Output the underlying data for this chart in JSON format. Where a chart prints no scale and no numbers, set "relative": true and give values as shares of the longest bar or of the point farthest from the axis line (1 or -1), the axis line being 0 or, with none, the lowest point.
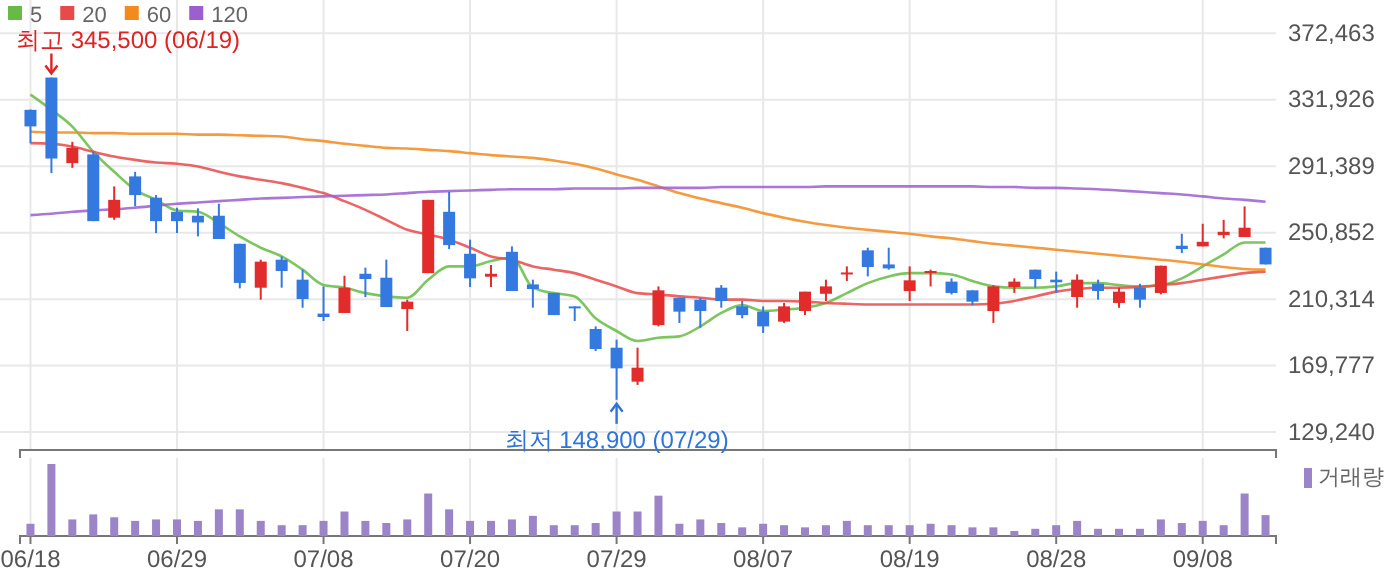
{
  "chart_data": [
    {
      "type": "candlestick",
      "categories": [
        "06/18",
        null,
        null,
        null,
        null,
        null,
        null,
        "06/29",
        null,
        null,
        null,
        null,
        null,
        null,
        "07/08",
        null,
        null,
        null,
        null,
        null,
        null,
        "07/20",
        null,
        null,
        null,
        null,
        null,
        null,
        "07/29",
        null,
        null,
        null,
        null,
        null,
        null,
        "08/07",
        null,
        null,
        null,
        null,
        null,
        null,
        "08/19",
        null,
        null,
        null,
        null,
        null,
        null,
        "08/28",
        null,
        null,
        null,
        null,
        null,
        null,
        "09/08",
        null,
        null,
        null
      ],
      "ohlc": [
        [
          325800,
          326000,
          305400,
          315700
        ],
        [
          345500,
          345500,
          287200,
          296100
        ],
        [
          293300,
          306300,
          290400,
          302600
        ],
        [
          298600,
          300200,
          257900,
          257900
        ],
        [
          260000,
          279100,
          258700,
          270900
        ],
        [
          285200,
          288000,
          266900,
          273800
        ],
        [
          272200,
          273800,
          250600,
          257900
        ],
        [
          263600,
          266100,
          250600,
          257900
        ],
        [
          261200,
          265700,
          248600,
          257100
        ],
        [
          261200,
          268500,
          247000,
          247000
        ],
        [
          244100,
          244100,
          216900,
          220200
        ],
        [
          217300,
          234400,
          210000,
          233200
        ],
        [
          234400,
          236400,
          217300,
          227500
        ],
        [
          222200,
          228300,
          205100,
          210400
        ],
        [
          201500,
          218100,
          197000,
          199400
        ],
        [
          201900,
          224600,
          201900,
          217300
        ],
        [
          225800,
          229500,
          211600,
          222600
        ],
        [
          223400,
          234400,
          205500,
          205500
        ],
        [
          204300,
          210000,
          190900,
          208800
        ],
        [
          226200,
          270900,
          226200,
          270900
        ],
        [
          263600,
          275800,
          240900,
          243300
        ],
        [
          238000,
          246600,
          217700,
          223000
        ],
        [
          224000,
          231100,
          217700,
          225800
        ],
        [
          239200,
          242500,
          215300,
          215300
        ],
        [
          219300,
          222200,
          205100,
          216500
        ],
        [
          214100,
          214100,
          200600,
          200600
        ],
        [
          205900,
          205900,
          197000,
          205100
        ],
        [
          192100,
          193700,
          178700,
          179900
        ],
        [
          180700,
          185600,
          148900,
          168100
        ],
        [
          160000,
          180700,
          158000,
          168500
        ],
        [
          194500,
          218100,
          193700,
          215700
        ],
        [
          211200,
          211200,
          195800,
          202700
        ],
        [
          210000,
          211200,
          192900,
          203100
        ],
        [
          217300,
          218900,
          205100,
          209200
        ],
        [
          205900,
          209200,
          198600,
          200600
        ],
        [
          202700,
          205900,
          189700,
          193700
        ],
        [
          196600,
          208000,
          195800,
          205900
        ],
        [
          203100,
          214900,
          200600,
          214900
        ],
        [
          213600,
          222200,
          209200,
          218100
        ],
        [
          225400,
          230300,
          221400,
          226600
        ],
        [
          240100,
          241700,
          224200,
          229900
        ],
        [
          231500,
          241700,
          228300,
          229100
        ],
        [
          215300,
          230300,
          209200,
          221800
        ],
        [
          226600,
          228300,
          218100,
          227500
        ],
        [
          221000,
          223000,
          213200,
          214100
        ],
        [
          215700,
          215700,
          206700,
          208800
        ],
        [
          203100,
          218900,
          195800,
          218100
        ],
        [
          217700,
          223000,
          214100,
          221000
        ],
        [
          228300,
          228300,
          217300,
          222600
        ],
        [
          222200,
          227100,
          214100,
          220600
        ],
        [
          211600,
          225400,
          205100,
          222200
        ],
        [
          219700,
          222200,
          210000,
          215300
        ],
        [
          208000,
          217300,
          205100,
          214900
        ],
        [
          217300,
          219700,
          205100,
          210000
        ],
        [
          214100,
          230700,
          213200,
          230700
        ],
        [
          242900,
          250200,
          238400,
          240900
        ],
        [
          242500,
          256300,
          242500,
          245300
        ],
        [
          249400,
          258700,
          247400,
          251400
        ],
        [
          248200,
          266900,
          248200,
          253900
        ],
        [
          241700,
          241700,
          231500,
          231500
        ]
      ],
      "series": [
        {
          "name": "5",
          "type": "line",
          "color": "#66bb44",
          "values": [
            335100,
            325800,
            315600,
            300200,
            288000,
            277000,
            270900,
            264400,
            263600,
            256700,
            248600,
            241700,
            236400,
            228300,
            218900,
            217300,
            214000,
            212000,
            211200,
            222200,
            230300,
            230300,
            233600,
            235600,
            217300,
            214000,
            212000,
            198600,
            190900,
            184800,
            186800,
            187600,
            193700,
            201900,
            206700,
            203100,
            203900,
            205100,
            208000,
            214000,
            220100,
            224200,
            226200,
            226200,
            225400,
            221400,
            218100,
            217300,
            217300,
            218100,
            220100,
            220100,
            218900,
            218100,
            218900,
            223000,
            230300,
            237600,
            244900,
            244900
          ]
        },
        {
          "name": "20",
          "type": "line",
          "color": "#e84a4a",
          "values": [
            305500,
            305100,
            303400,
            300200,
            297300,
            295300,
            293700,
            292900,
            291200,
            288000,
            285200,
            283100,
            281100,
            278200,
            275000,
            270100,
            264800,
            258700,
            252600,
            249800,
            246600,
            241700,
            236400,
            234400,
            230300,
            228300,
            226200,
            222200,
            218100,
            214000,
            213200,
            212000,
            211200,
            210000,
            210000,
            209200,
            209200,
            208800,
            208000,
            207500,
            207100,
            207100,
            207100,
            207100,
            207100,
            207100,
            207500,
            209200,
            212000,
            214900,
            216500,
            217300,
            217300,
            217700,
            218900,
            220100,
            222200,
            224200,
            226200,
            227100
          ]
        },
        {
          "name": "60",
          "type": "line",
          "color": "#f28a1e",
          "values": [
            312400,
            312000,
            312000,
            311600,
            311600,
            311200,
            311200,
            311200,
            310700,
            310700,
            310300,
            309900,
            309500,
            307900,
            306700,
            305100,
            303800,
            302600,
            302200,
            301400,
            300600,
            299400,
            298200,
            297300,
            296500,
            294900,
            292900,
            290000,
            286400,
            283100,
            279100,
            275000,
            271700,
            268900,
            266100,
            262800,
            260000,
            257500,
            255500,
            253900,
            252600,
            251400,
            250200,
            248600,
            247400,
            245700,
            244100,
            242900,
            241700,
            240500,
            239200,
            238000,
            236800,
            235600,
            234400,
            233100,
            231500,
            229900,
            228700,
            228300
          ]
        },
        {
          "name": "120",
          "type": "line",
          "color": "#9b5fd0",
          "values": [
            261600,
            262400,
            263600,
            264400,
            265200,
            266100,
            267300,
            268500,
            269300,
            270100,
            270900,
            271700,
            272100,
            272600,
            273000,
            273400,
            273800,
            274200,
            275000,
            275800,
            276200,
            276600,
            277000,
            277400,
            277400,
            277400,
            277800,
            277800,
            277800,
            278200,
            278200,
            278200,
            278200,
            278700,
            278700,
            278700,
            278700,
            278700,
            279100,
            279100,
            279100,
            279100,
            279100,
            279100,
            279100,
            279100,
            278700,
            278700,
            278200,
            278200,
            277800,
            277400,
            276600,
            275800,
            275000,
            274200,
            273000,
            271700,
            270900,
            269700
          ]
        }
      ],
      "ylim": [
        118300,
        392800
      ],
      "yticks": [
        {
          "value": 129240,
          "label": "129,240"
        },
        {
          "value": 169777,
          "label": "169,777"
        },
        {
          "value": 210314,
          "label": "210,314"
        },
        {
          "value": 250852,
          "label": "250,852"
        },
        {
          "value": 291389,
          "label": "291,389"
        },
        {
          "value": 331926,
          "label": "331,926"
        },
        {
          "value": 372463,
          "label": "372,463"
        }
      ],
      "grid": true,
      "legend": "top left",
      "tick_labels": "y",
      "annotations": [
        "최고 345,500 (06/19)",
        {
          "text": "최저 148,900 (07/29)",
          "x": "07/29",
          "y": 148900
        }
      ]
    },
    {
      "type": "bar",
      "relative": true,
      "categories": [
        "06/18",
        null,
        null,
        null,
        null,
        null,
        null,
        "06/29",
        null,
        null,
        null,
        null,
        null,
        null,
        "07/08",
        null,
        null,
        null,
        null,
        null,
        null,
        "07/20",
        null,
        null,
        null,
        null,
        null,
        null,
        "07/29",
        null,
        null,
        null,
        null,
        null,
        null,
        "08/07",
        null,
        null,
        null,
        null,
        null,
        null,
        "08/19",
        null,
        null,
        null,
        null,
        null,
        null,
        "08/28",
        null,
        null,
        null,
        null,
        null,
        null,
        "09/08",
        null,
        null,
        null
      ],
      "series": [
        {
          "name": "거래량",
          "color": "#9c84c8",
          "values": [
            0.17,
            1,
            0.23,
            0.3,
            0.26,
            0.21,
            0.23,
            0.23,
            0.21,
            0.37,
            0.37,
            0.21,
            0.15,
            0.15,
            0.21,
            0.34,
            0.21,
            0.18,
            0.23,
            0.59,
            0.37,
            0.21,
            0.21,
            0.23,
            0.28,
            0.15,
            0.15,
            0.18,
            0.34,
            0.34,
            0.56,
            0.17,
            0.23,
            0.18,
            0.12,
            0.17,
            0.15,
            0.12,
            0.15,
            0.21,
            0.15,
            0.15,
            0.15,
            0.17,
            0.15,
            0.12,
            0.12,
            0.07,
            0.1,
            0.15,
            0.21,
            0.1,
            0.1,
            0.1,
            0.23,
            0.18,
            0.21,
            0.15,
            0.59,
            0.29
          ]
        }
      ],
      "grid": "x",
      "legend": "top right",
      "tick_labels": "x"
    }
  ]
}
